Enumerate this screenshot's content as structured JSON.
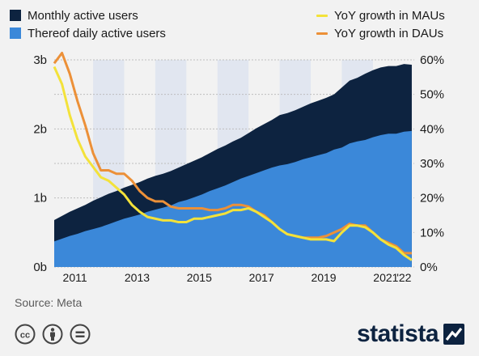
{
  "legend": {
    "mau": "Monthly active users",
    "dau": "Thereof daily active users",
    "mau_growth": "YoY growth in MAUs",
    "dau_growth": "YoY growth in DAUs"
  },
  "colors": {
    "mau": "#0d2340",
    "dau": "#3b88d9",
    "mau_growth": "#f3e23a",
    "dau_growth": "#ec9038",
    "band": "#e1e6f0",
    "grid": "#bdbdbd"
  },
  "source": "Source: Meta",
  "brand": "statista",
  "icons": [
    "cc-icon",
    "person-icon",
    "equals-icon",
    "statista-logo-icon"
  ],
  "chart_data": {
    "type": "area",
    "x_ticks": [
      "2011",
      "2013",
      "2015",
      "2017",
      "2019",
      "2021",
      "'22"
    ],
    "y_left": {
      "range": [
        0,
        3
      ],
      "unit": "b",
      "ticks": [
        "0b",
        "1b",
        "2b",
        "3b"
      ]
    },
    "y_right": {
      "range": [
        0,
        60
      ],
      "unit": "%",
      "ticks": [
        "0%",
        "10%",
        "20%",
        "30%",
        "40%",
        "50%",
        "60%"
      ]
    },
    "grid": true,
    "shaded_years": [
      2012,
      2014,
      2016,
      2018,
      2020
    ],
    "x": [
      2010.75,
      2011.0,
      2011.25,
      2011.5,
      2011.75,
      2012.0,
      2012.25,
      2012.5,
      2012.75,
      2013.0,
      2013.25,
      2013.5,
      2013.75,
      2014.0,
      2014.25,
      2014.5,
      2014.75,
      2015.0,
      2015.25,
      2015.5,
      2015.75,
      2016.0,
      2016.25,
      2016.5,
      2016.75,
      2017.0,
      2017.25,
      2017.5,
      2017.75,
      2018.0,
      2018.25,
      2018.5,
      2018.75,
      2019.0,
      2019.25,
      2019.5,
      2019.75,
      2020.0,
      2020.25,
      2020.5,
      2020.75,
      2021.0,
      2021.25,
      2021.5,
      2021.75,
      2022.0,
      2022.25
    ],
    "series": [
      {
        "name": "Monthly active users",
        "axis": "left",
        "kind": "area",
        "values": [
          0.68,
          0.74,
          0.8,
          0.85,
          0.9,
          0.96,
          1.01,
          1.06,
          1.1,
          1.15,
          1.19,
          1.23,
          1.28,
          1.32,
          1.35,
          1.39,
          1.44,
          1.49,
          1.54,
          1.59,
          1.65,
          1.71,
          1.76,
          1.82,
          1.87,
          1.94,
          2.01,
          2.07,
          2.13,
          2.2,
          2.23,
          2.27,
          2.32,
          2.37,
          2.41,
          2.45,
          2.5,
          2.6,
          2.7,
          2.74,
          2.8,
          2.85,
          2.89,
          2.91,
          2.91,
          2.94,
          2.93
        ]
      },
      {
        "name": "Thereof daily active users",
        "axis": "left",
        "kind": "area",
        "values": [
          0.37,
          0.41,
          0.45,
          0.48,
          0.52,
          0.55,
          0.58,
          0.62,
          0.66,
          0.7,
          0.73,
          0.76,
          0.8,
          0.83,
          0.86,
          0.89,
          0.94,
          0.97,
          1.01,
          1.05,
          1.1,
          1.14,
          1.18,
          1.23,
          1.28,
          1.32,
          1.36,
          1.4,
          1.44,
          1.47,
          1.49,
          1.52,
          1.56,
          1.59,
          1.62,
          1.65,
          1.7,
          1.73,
          1.79,
          1.82,
          1.84,
          1.88,
          1.91,
          1.93,
          1.93,
          1.96,
          1.97
        ]
      },
      {
        "name": "YoY growth in MAUs",
        "axis": "right",
        "kind": "line",
        "values": [
          58,
          53,
          44,
          37,
          32,
          29,
          26,
          25,
          23,
          21,
          18,
          16,
          14.5,
          14,
          13.5,
          13.5,
          13,
          13,
          14,
          14,
          14.5,
          15,
          15.5,
          16.5,
          16.5,
          17,
          16,
          14.5,
          13,
          11,
          9.5,
          9,
          8.5,
          8,
          8,
          8,
          7.5,
          10,
          12,
          12,
          11.5,
          10,
          8,
          6.5,
          5.5,
          3.5,
          2
        ]
      },
      {
        "name": "YoY growth in DAUs",
        "axis": "right",
        "kind": "line",
        "values": [
          59,
          62,
          56,
          48,
          41,
          33,
          28,
          28,
          27,
          27,
          25,
          22,
          20,
          19,
          19,
          17.5,
          17,
          17,
          17,
          17,
          16.5,
          16.5,
          17,
          18,
          18,
          17.5,
          16,
          15,
          13,
          11,
          9.5,
          9,
          8.5,
          8.5,
          8.5,
          9,
          10,
          11,
          12.5,
          12,
          12,
          10,
          8,
          7,
          6,
          4,
          4
        ]
      }
    ]
  }
}
